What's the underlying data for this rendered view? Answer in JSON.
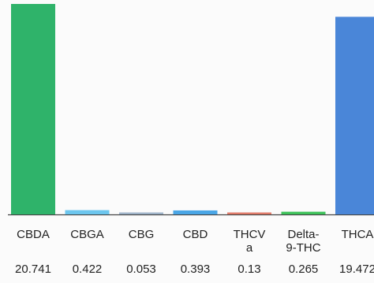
{
  "chart_data": {
    "type": "bar",
    "title": "",
    "xlabel": "",
    "ylabel": "",
    "ylim": [
      0,
      20.741
    ],
    "grid": false,
    "legend": "none",
    "categories": [
      {
        "lines": [
          "CBDA"
        ],
        "value": 20.741,
        "value_label": "20.741",
        "color": "#2fb36a"
      },
      {
        "lines": [
          "CBGA"
        ],
        "value": 0.422,
        "value_label": "0.422",
        "color": "#6cc6ee"
      },
      {
        "lines": [
          "CBG"
        ],
        "value": 0.053,
        "value_label": "0.053",
        "color": "#9fb3c8"
      },
      {
        "lines": [
          "CBD"
        ],
        "value": 0.393,
        "value_label": "0.393",
        "color": "#4aa6e6"
      },
      {
        "lines": [
          "THCV",
          "a"
        ],
        "value": 0.13,
        "value_label": "0.13",
        "color": "#e07b6a"
      },
      {
        "lines": [
          "Delta-",
          "9-THC"
        ],
        "value": 0.265,
        "value_label": "0.265",
        "color": "#3ec25a"
      },
      {
        "lines": [
          "THCA"
        ],
        "value": 19.472,
        "value_label": "19.472",
        "color": "#4a86d8"
      }
    ]
  }
}
